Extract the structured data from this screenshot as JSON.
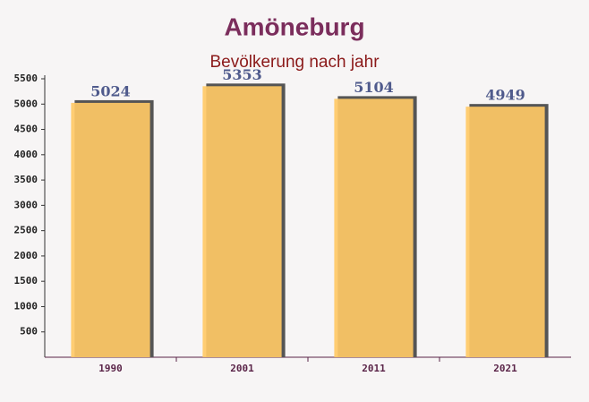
{
  "chart_data": {
    "type": "bar",
    "title": "Amöneburg",
    "subtitle": "Bevölkerung nach jahr",
    "categories": [
      "1990",
      "2001",
      "2011",
      "2021"
    ],
    "values": [
      5024,
      5353,
      5104,
      4949
    ],
    "color": "#ffc966",
    "ylim": [
      0,
      5500
    ],
    "yticks": [
      500,
      1000,
      1500,
      2000,
      2500,
      3000,
      3500,
      4000,
      4500,
      5000,
      5500
    ]
  }
}
